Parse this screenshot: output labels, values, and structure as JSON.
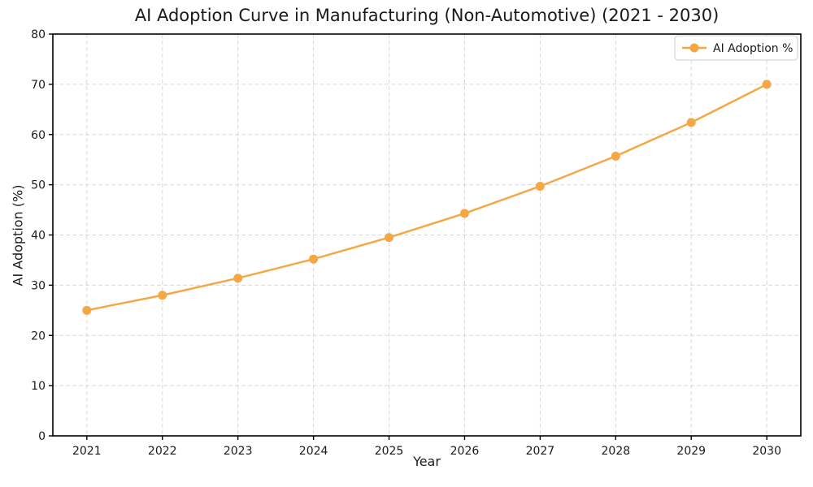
{
  "chart_data": {
    "type": "line",
    "title": "AI Adoption Curve in Manufacturing (Non-Automotive) (2021 - 2030)",
    "xlabel": "Year",
    "ylabel": "AI Adoption (%)",
    "x": [
      2021,
      2022,
      2023,
      2024,
      2025,
      2026,
      2027,
      2028,
      2029,
      2030
    ],
    "series": [
      {
        "name": "AI Adoption %",
        "values": [
          25.0,
          28.0,
          31.4,
          35.2,
          39.5,
          44.3,
          49.7,
          55.7,
          62.4,
          70.0
        ],
        "color": "#F4A845",
        "marker": "circle",
        "line_width": 2.5,
        "marker_radius": 5.5
      }
    ],
    "ylim": [
      0,
      80
    ],
    "yticks": [
      0,
      10,
      20,
      30,
      40,
      50,
      60,
      70,
      80
    ],
    "xlim": [
      2020.55,
      2030.45
    ],
    "grid": true,
    "grid_style": "dashed",
    "legend_position": "upper right"
  },
  "colors": {
    "line": "#F4A845",
    "grid": "#D8D8D8",
    "axis": "#000000",
    "text": "#1A1A1A",
    "background": "#FFFFFF",
    "legend_border": "#CCCCCC",
    "legend_background": "#FFFFFF"
  }
}
